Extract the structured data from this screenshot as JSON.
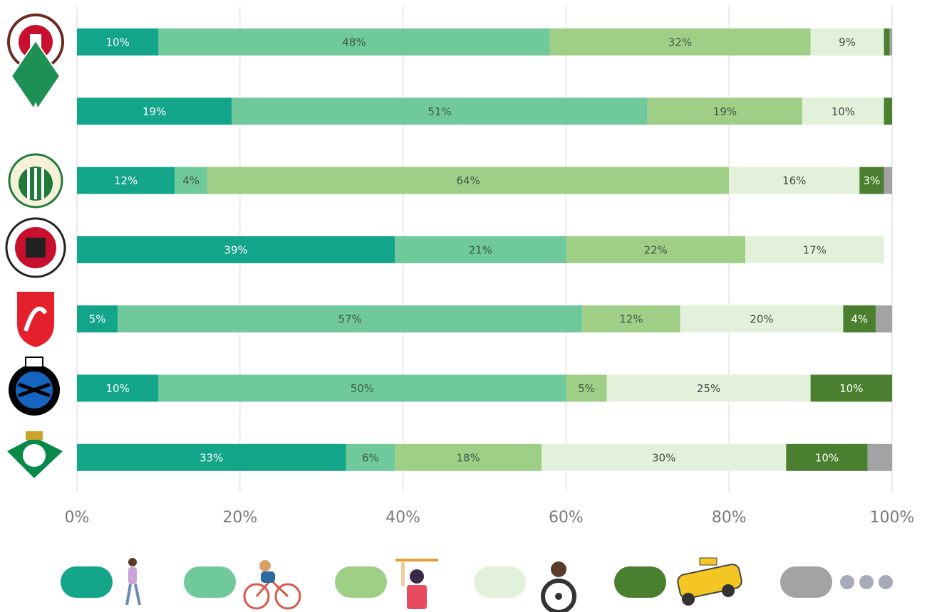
{
  "chart_data": {
    "type": "stacked_barh",
    "categories": [
      null,
      null,
      null,
      null,
      null,
      null,
      null
    ],
    "series": [
      {
        "color": "#13a58a",
        "label_color": "#ffffff",
        "values": [
          10,
          19,
          12,
          39,
          5,
          10,
          33
        ],
        "value_labels": [
          "10%",
          "19%",
          "12%",
          "39%",
          "5%",
          "10%",
          "33%"
        ]
      },
      {
        "color": "#70c99a",
        "label_color": "#3d5a48",
        "values": [
          48,
          51,
          4,
          21,
          57,
          50,
          6
        ],
        "value_labels": [
          "48%",
          "51%",
          "4%",
          "21%",
          "57%",
          "50%",
          "6%"
        ]
      },
      {
        "color": "#9fcf87",
        "label_color": "#3d5a48",
        "values": [
          32,
          19,
          64,
          22,
          12,
          5,
          18
        ],
        "value_labels": [
          "32%",
          "19%",
          "64%",
          "22%",
          "12%",
          "5%",
          "18%"
        ]
      },
      {
        "color": "#e2f2da",
        "label_color": "#4a4a4a",
        "values": [
          9,
          10,
          16,
          17,
          20,
          25,
          30
        ],
        "value_labels": [
          "9%",
          "10%",
          "16%",
          "17%",
          "20%",
          "25%",
          "30%"
        ]
      },
      {
        "color": "#4a7f2f",
        "label_color": "#ffffff",
        "values": [
          0.7,
          1,
          3,
          null,
          4,
          10,
          10
        ],
        "value_labels": [
          null,
          null,
          "3%",
          null,
          "4%",
          "10%",
          "10%"
        ]
      },
      {
        "color": "#a3a3a3",
        "label_color": "#ffffff",
        "values": [
          0.3,
          null,
          1,
          null,
          2,
          null,
          3
        ],
        "value_labels": [
          null,
          null,
          null,
          null,
          null,
          null,
          null
        ]
      }
    ],
    "xlim": [
      0,
      100
    ],
    "xticks": [
      {
        "value": 0,
        "label": "0%"
      },
      {
        "value": 20,
        "label": "20%"
      },
      {
        "value": 40,
        "label": "40%"
      },
      {
        "value": 60,
        "label": "60%"
      },
      {
        "value": 80,
        "label": "80%"
      },
      {
        "value": 100,
        "label": "100%"
      }
    ],
    "grid": true
  }
}
